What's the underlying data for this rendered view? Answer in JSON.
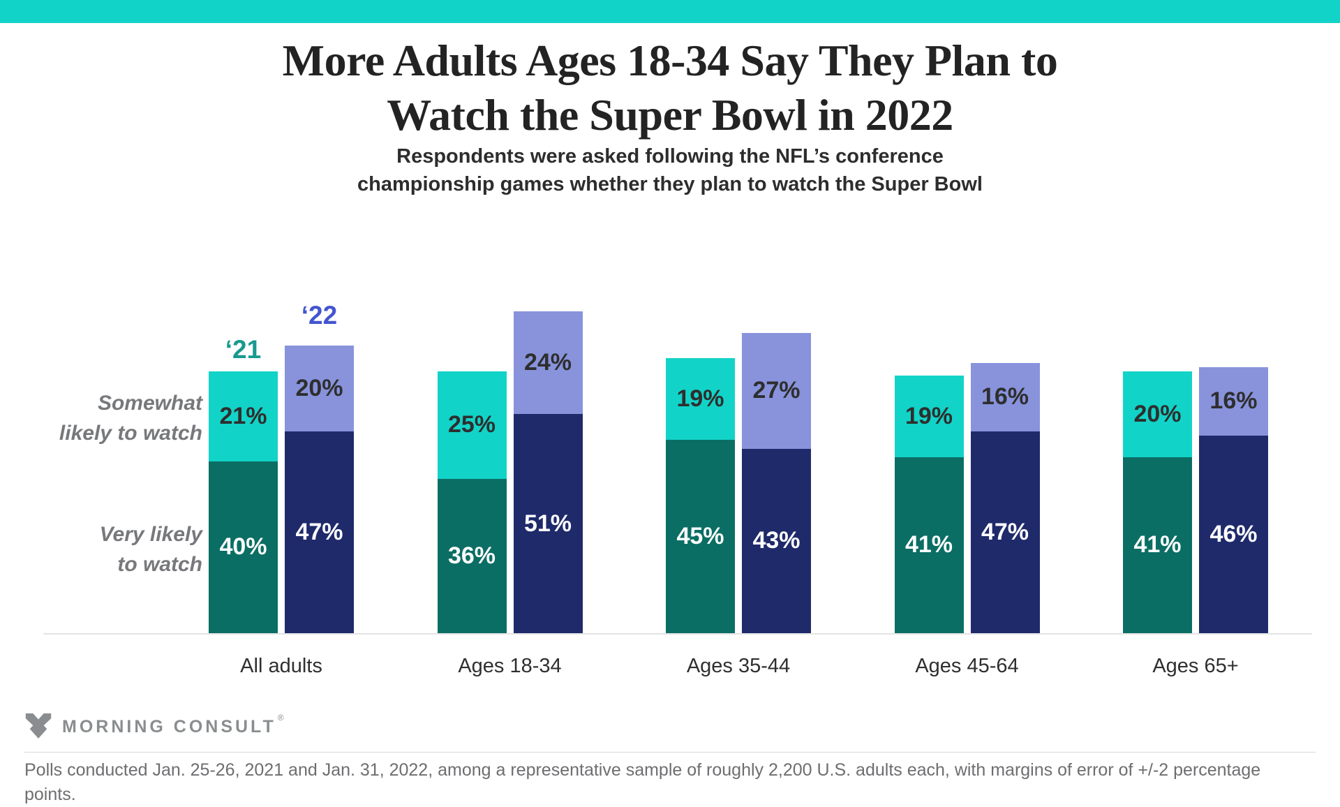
{
  "brand": {
    "bar_color": "#12d3c7",
    "logo_text": "MORNING CONSULT",
    "logo_reg": "®",
    "logo_color": "#8a8d8f"
  },
  "header": {
    "title_line1": "More Adults Ages 18-34 Say They Plan to",
    "title_line2": "Watch the Super Bowl in 2022",
    "subtitle_line1": "Respondents were asked following the NFL’s conference",
    "subtitle_line2": "championship games whether they plan to watch the Super Bowl"
  },
  "chart_data": {
    "type": "bar",
    "stacked": true,
    "grid": false,
    "ylim": [
      0,
      100
    ],
    "value_suffix": "%",
    "legend_position": "above-first-group",
    "categories": [
      "All adults",
      "Ages 18-34",
      "Ages 35-44",
      "Ages 45-64",
      "Ages 65+"
    ],
    "row_labels": {
      "somewhat": [
        "Somewhat",
        "likely to watch"
      ],
      "very": [
        "Very likely",
        "to watch"
      ]
    },
    "series": [
      {
        "name": "‘21",
        "label_color": "#17998f",
        "segments": [
          {
            "key": "somewhat-likely-to-watch",
            "color": "#12d3c7",
            "text_color": "#2e2e2e",
            "values": [
              21,
              25,
              19,
              19,
              20
            ]
          },
          {
            "key": "very-likely-to-watch",
            "color": "#0b6e64",
            "text_color": "#ffffff",
            "values": [
              40,
              36,
              45,
              41,
              41
            ]
          }
        ]
      },
      {
        "name": "‘22",
        "label_color": "#4355cf",
        "segments": [
          {
            "key": "somewhat-likely-to-watch",
            "color": "#8893dc",
            "text_color": "#2e2e2e",
            "values": [
              20,
              24,
              27,
              16,
              16
            ]
          },
          {
            "key": "very-likely-to-watch",
            "color": "#1f2a6b",
            "text_color": "#ffffff",
            "values": [
              47,
              51,
              43,
              47,
              46
            ]
          }
        ]
      }
    ]
  },
  "footer": {
    "source_text": "Polls conducted Jan. 25-26, 2021 and Jan. 31, 2022, among a representative sample of roughly 2,200 U.S. adults each, with margins of error of +/-2 percentage points."
  }
}
